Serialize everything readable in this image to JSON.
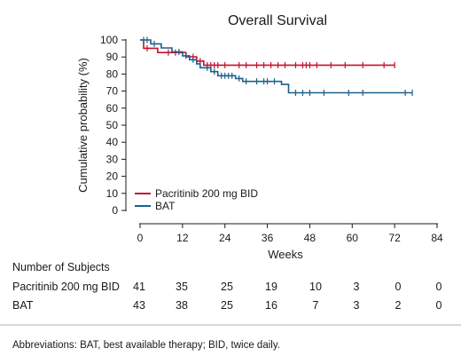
{
  "chart_data": {
    "type": "line",
    "title": "Overall Survival",
    "xlabel": "Weeks",
    "ylabel": "Cumulative probability (%)",
    "xlim": [
      0,
      84
    ],
    "ylim": [
      0,
      100
    ],
    "xticks": [
      0,
      12,
      24,
      36,
      48,
      60,
      72,
      84
    ],
    "yticks": [
      0,
      10,
      20,
      30,
      40,
      50,
      60,
      70,
      80,
      90,
      100
    ],
    "legend_position": "bottom-left",
    "series": [
      {
        "name": "Pacritinib 200 mg BID",
        "color": "#c8102e",
        "step_points": [
          [
            0,
            100
          ],
          [
            1,
            100
          ],
          [
            1,
            95.1
          ],
          [
            5,
            95.1
          ],
          [
            5,
            92.6
          ],
          [
            13,
            92.6
          ],
          [
            13,
            90.1
          ],
          [
            16,
            90.1
          ],
          [
            16,
            87.6
          ],
          [
            18,
            87.6
          ],
          [
            18,
            85.2
          ],
          [
            72,
            85.2
          ]
        ],
        "censored": [
          [
            2,
            95.1
          ],
          [
            8,
            92.6
          ],
          [
            10,
            92.6
          ],
          [
            15,
            90.1
          ],
          [
            17,
            87.6
          ],
          [
            19,
            85.2
          ],
          [
            20,
            85.2
          ],
          [
            21,
            85.2
          ],
          [
            22,
            85.2
          ],
          [
            24,
            85.2
          ],
          [
            28,
            85.2
          ],
          [
            30,
            85.2
          ],
          [
            33,
            85.2
          ],
          [
            35,
            85.2
          ],
          [
            37,
            85.2
          ],
          [
            39,
            85.2
          ],
          [
            41,
            85.2
          ],
          [
            44,
            85.2
          ],
          [
            46,
            85.2
          ],
          [
            47,
            85.2
          ],
          [
            48,
            85.2
          ],
          [
            50,
            85.2
          ],
          [
            54,
            85.2
          ],
          [
            58,
            85.2
          ],
          [
            63,
            85.2
          ],
          [
            69,
            85.2
          ],
          [
            72,
            85.2
          ]
        ]
      },
      {
        "name": "BAT",
        "color": "#1f5f8b",
        "step_points": [
          [
            0,
            100
          ],
          [
            3,
            100
          ],
          [
            3,
            97.7
          ],
          [
            6,
            97.7
          ],
          [
            6,
            95.3
          ],
          [
            9,
            95.3
          ],
          [
            9,
            93
          ],
          [
            12,
            93
          ],
          [
            12,
            90.7
          ],
          [
            14,
            90.7
          ],
          [
            14,
            88.4
          ],
          [
            16,
            88.4
          ],
          [
            16,
            86
          ],
          [
            17,
            86
          ],
          [
            17,
            83.7
          ],
          [
            20,
            83.7
          ],
          [
            20,
            81.4
          ],
          [
            22,
            81.4
          ],
          [
            22,
            79
          ],
          [
            27,
            79
          ],
          [
            27,
            77.4
          ],
          [
            29,
            77.4
          ],
          [
            29,
            75.7
          ],
          [
            40,
            75.7
          ],
          [
            40,
            73.9
          ],
          [
            42,
            73.9
          ],
          [
            42,
            69
          ],
          [
            77,
            69
          ]
        ],
        "censored": [
          [
            1,
            100
          ],
          [
            2,
            100
          ],
          [
            4,
            97.7
          ],
          [
            11,
            93
          ],
          [
            13,
            90.7
          ],
          [
            15,
            88.4
          ],
          [
            19,
            83.7
          ],
          [
            21,
            81.4
          ],
          [
            23,
            79
          ],
          [
            24,
            79
          ],
          [
            25,
            79
          ],
          [
            26,
            79
          ],
          [
            28,
            77.4
          ],
          [
            30,
            75.7
          ],
          [
            33,
            75.7
          ],
          [
            35,
            75.7
          ],
          [
            36,
            75.7
          ],
          [
            38,
            75.7
          ],
          [
            44,
            69
          ],
          [
            46,
            69
          ],
          [
            48,
            69
          ],
          [
            52,
            69
          ],
          [
            59,
            69
          ],
          [
            63,
            69
          ],
          [
            75,
            69
          ],
          [
            77,
            69
          ]
        ]
      }
    ],
    "risk_table": {
      "heading": "Number of Subjects",
      "timepoints": [
        0,
        12,
        24,
        36,
        48,
        60,
        72,
        84
      ],
      "rows": [
        {
          "label": "Pacritinib 200 mg BID",
          "values": [
            "41",
            "35",
            "25",
            "19",
            "10",
            "3",
            "0",
            "0"
          ]
        },
        {
          "label": "BAT",
          "values": [
            "43",
            "38",
            "25",
            "16",
            "7",
            "3",
            "2",
            "0"
          ]
        }
      ]
    }
  },
  "footnote": "Abbreviations: BAT, best available therapy; BID, twice daily."
}
